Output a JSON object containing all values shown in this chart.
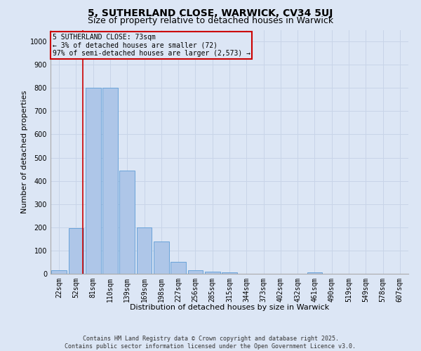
{
  "title": "5, SUTHERLAND CLOSE, WARWICK, CV34 5UJ",
  "subtitle": "Size of property relative to detached houses in Warwick",
  "xlabel": "Distribution of detached houses by size in Warwick",
  "ylabel": "Number of detached properties",
  "bins": [
    "22sqm",
    "52sqm",
    "81sqm",
    "110sqm",
    "139sqm",
    "169sqm",
    "198sqm",
    "227sqm",
    "256sqm",
    "285sqm",
    "315sqm",
    "344sqm",
    "373sqm",
    "402sqm",
    "432sqm",
    "461sqm",
    "490sqm",
    "519sqm",
    "549sqm",
    "578sqm",
    "607sqm"
  ],
  "values": [
    15,
    195,
    800,
    800,
    445,
    200,
    140,
    50,
    15,
    10,
    7,
    0,
    0,
    0,
    0,
    5,
    0,
    0,
    0,
    0,
    0
  ],
  "bar_color": "#aec6e8",
  "bar_edge_color": "#5b9bd5",
  "grid_color": "#c8d4e8",
  "bg_color": "#dce6f5",
  "vline_color": "#cc0000",
  "vline_x_index": 1,
  "annotation_lines": [
    "5 SUTHERLAND CLOSE: 73sqm",
    "← 3% of detached houses are smaller (72)",
    "97% of semi-detached houses are larger (2,573) →"
  ],
  "annotation_box_color": "#cc0000",
  "ylim": [
    0,
    1050
  ],
  "yticks": [
    0,
    100,
    200,
    300,
    400,
    500,
    600,
    700,
    800,
    900,
    1000
  ],
  "footer_line1": "Contains HM Land Registry data © Crown copyright and database right 2025.",
  "footer_line2": "Contains public sector information licensed under the Open Government Licence v3.0.",
  "title_fontsize": 10,
  "subtitle_fontsize": 9,
  "axis_label_fontsize": 8,
  "tick_fontsize": 7,
  "annotation_fontsize": 7,
  "footer_fontsize": 6
}
